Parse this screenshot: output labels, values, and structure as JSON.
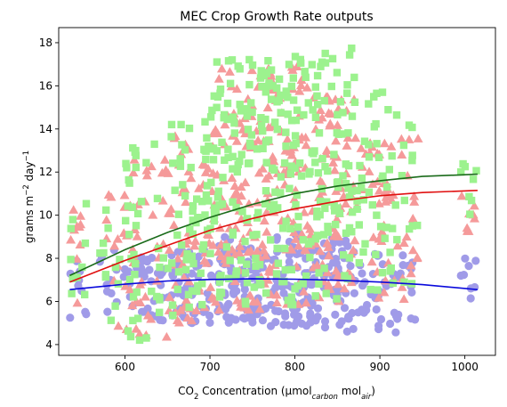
{
  "chart_data": {
    "type": "scatter",
    "title": "MEC Crop Growth Rate outputs",
    "xlabel": {
      "prefix": "CO",
      "sub1": "2",
      "mid": " Concentration (µmol",
      "sub2": "carbon",
      "mid2": " mol",
      "sub3": "air",
      "suffix": ")"
    },
    "ylabel": {
      "prefix": "grams m",
      "sup1": "−2",
      "mid": " day",
      "sup2": "−1"
    },
    "xlim": [
      522,
      1036
    ],
    "ylim": [
      3.5,
      18.7
    ],
    "xticks": [
      600,
      700,
      800,
      900,
      1000
    ],
    "yticks": [
      4,
      6,
      8,
      10,
      12,
      14,
      16,
      18
    ],
    "grid": false,
    "series": [
      {
        "marker": "circle",
        "color": "#a09be8",
        "clusters": [
          {
            "x": [
              535,
              555
            ],
            "n": 10,
            "y": [
              5.2,
              8.0
            ]
          },
          {
            "x": [
              570,
              600
            ],
            "n": 12,
            "y": [
              5.5,
              8.5
            ]
          },
          {
            "x": [
              600,
              650
            ],
            "n": 35,
            "y": [
              4.8,
              8.3
            ]
          },
          {
            "x": [
              650,
              700
            ],
            "n": 50,
            "y": [
              5.0,
              8.6
            ]
          },
          {
            "x": [
              700,
              760
            ],
            "n": 80,
            "y": [
              5.0,
              9.0
            ]
          },
          {
            "x": [
              760,
              820
            ],
            "n": 80,
            "y": [
              4.8,
              9.2
            ]
          },
          {
            "x": [
              820,
              870
            ],
            "n": 60,
            "y": [
              4.5,
              9.0
            ]
          },
          {
            "x": [
              870,
              945
            ],
            "n": 50,
            "y": [
              4.5,
              8.2
            ]
          },
          {
            "x": [
              995,
              1015
            ],
            "n": 8,
            "y": [
              6.1,
              8.0
            ]
          }
        ]
      },
      {
        "marker": "triangle",
        "color": "#f59a9a",
        "clusters": [
          {
            "x": [
              535,
              555
            ],
            "n": 10,
            "y": [
              5.9,
              10.5
            ]
          },
          {
            "x": [
              570,
              600
            ],
            "n": 12,
            "y": [
              4.7,
              11.0
            ]
          },
          {
            "x": [
              600,
              650
            ],
            "n": 40,
            "y": [
              4.2,
              12.8
            ]
          },
          {
            "x": [
              650,
              700
            ],
            "n": 60,
            "y": [
              5.0,
              14.0
            ]
          },
          {
            "x": [
              700,
              760
            ],
            "n": 100,
            "y": [
              5.5,
              16.8
            ]
          },
          {
            "x": [
              760,
              820
            ],
            "n": 100,
            "y": [
              5.8,
              16.9
            ]
          },
          {
            "x": [
              820,
              870
            ],
            "n": 80,
            "y": [
              6.0,
              15.5
            ]
          },
          {
            "x": [
              870,
              945
            ],
            "n": 60,
            "y": [
              6.0,
              13.8
            ]
          },
          {
            "x": [
              995,
              1015
            ],
            "n": 8,
            "y": [
              9.0,
              12.5
            ]
          }
        ]
      },
      {
        "marker": "square",
        "color": "#9cf28e",
        "clusters": [
          {
            "x": [
              535,
              555
            ],
            "n": 10,
            "y": [
              6.0,
              10.6
            ]
          },
          {
            "x": [
              570,
              600
            ],
            "n": 12,
            "y": [
              4.8,
              10.8
            ]
          },
          {
            "x": [
              600,
              650
            ],
            "n": 40,
            "y": [
              4.2,
              13.4
            ]
          },
          {
            "x": [
              650,
              700
            ],
            "n": 60,
            "y": [
              5.0,
              14.5
            ]
          },
          {
            "x": [
              700,
              760
            ],
            "n": 100,
            "y": [
              5.8,
              17.6
            ]
          },
          {
            "x": [
              760,
              820
            ],
            "n": 100,
            "y": [
              5.8,
              17.4
            ]
          },
          {
            "x": [
              820,
              870
            ],
            "n": 80,
            "y": [
              6.0,
              17.9
            ]
          },
          {
            "x": [
              870,
              945
            ],
            "n": 60,
            "y": [
              6.5,
              15.8
            ]
          },
          {
            "x": [
              995,
              1015
            ],
            "n": 8,
            "y": [
              10.0,
              13.0
            ]
          }
        ]
      }
    ],
    "lines": [
      {
        "color": "#1a6b1a",
        "x": [
          535,
          600,
          650,
          700,
          750,
          800,
          850,
          900,
          950,
          1015
        ],
        "y": [
          7.2,
          8.4,
          9.2,
          9.9,
          10.5,
          11.0,
          11.35,
          11.6,
          11.8,
          11.9
        ]
      },
      {
        "color": "#e01010",
        "x": [
          535,
          600,
          650,
          700,
          750,
          800,
          850,
          900,
          950,
          1015
        ],
        "y": [
          6.9,
          7.9,
          8.6,
          9.3,
          9.85,
          10.3,
          10.65,
          10.9,
          11.05,
          11.15
        ]
      },
      {
        "color": "#0a0adc",
        "x": [
          535,
          600,
          650,
          700,
          750,
          800,
          850,
          900,
          950,
          1015
        ],
        "y": [
          6.55,
          6.8,
          6.95,
          7.02,
          7.05,
          7.03,
          6.98,
          6.9,
          6.78,
          6.55
        ]
      }
    ]
  }
}
